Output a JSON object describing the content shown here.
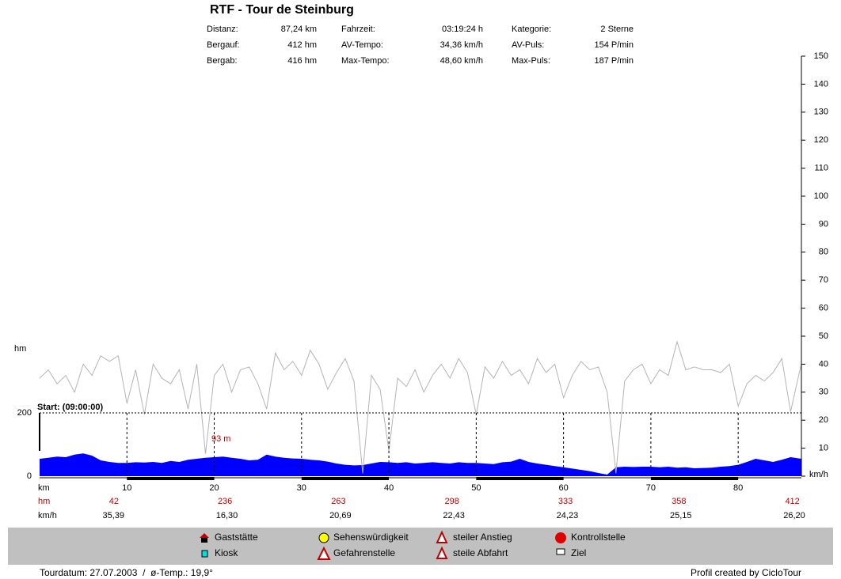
{
  "title": "RTF - Tour de Steinburg",
  "stats": [
    [
      {
        "label": "Distanz:",
        "value": "87,24 km"
      },
      {
        "label": "Fahrzeit:",
        "value": "03:19:24 h"
      },
      {
        "label": "Kategorie:",
        "value": "2 Sterne"
      }
    ],
    [
      {
        "label": "Bergauf:",
        "value": "412 hm"
      },
      {
        "label": "AV-Tempo:",
        "value": "34,36 km/h"
      },
      {
        "label": "AV-Puls:",
        "value": "154 P/min"
      }
    ],
    [
      {
        "label": "Bergab:",
        "value": "416 hm"
      },
      {
        "label": "Max-Tempo:",
        "value": "48,60 km/h"
      },
      {
        "label": "Max-Puls:",
        "value": "187 P/min"
      }
    ]
  ],
  "chart_data": {
    "type": "area",
    "x_label": "km",
    "y_label": "hm",
    "y2_label": "km/h",
    "start_label": "Start: (09:00:00)",
    "annotation": "93 m",
    "xlim": [
      0,
      87.24
    ],
    "xticks": [
      10,
      20,
      30,
      40,
      50,
      60,
      70,
      80
    ],
    "ylim": [
      0,
      200
    ],
    "yticks": [
      0,
      200
    ],
    "y2lim": [
      0,
      150
    ],
    "y2ticks": [
      0,
      10,
      20,
      30,
      40,
      50,
      60,
      70,
      80,
      90,
      100,
      110,
      120,
      130,
      140,
      150
    ],
    "x": [
      0,
      1,
      2,
      3,
      4,
      5,
      6,
      7,
      8,
      9,
      10,
      11,
      12,
      13,
      14,
      15,
      16,
      17,
      18,
      19,
      20,
      21,
      22,
      23,
      24,
      25,
      26,
      27,
      28,
      29,
      30,
      31,
      32,
      33,
      34,
      35,
      36,
      37,
      38,
      39,
      40,
      41,
      42,
      43,
      44,
      45,
      46,
      47,
      48,
      49,
      50,
      51,
      52,
      53,
      54,
      55,
      56,
      57,
      58,
      59,
      60,
      61,
      62,
      63,
      64,
      65,
      66,
      67,
      68,
      69,
      70,
      71,
      72,
      73,
      74,
      75,
      76,
      77,
      78,
      79,
      80,
      81,
      82,
      83,
      84,
      85,
      86,
      87,
      87.24
    ],
    "series": [
      {
        "color": "#0000ff",
        "values": [
          55,
          58,
          62,
          60,
          68,
          72,
          65,
          50,
          45,
          42,
          42,
          44,
          43,
          45,
          42,
          48,
          45,
          52,
          55,
          58,
          60,
          62,
          58,
          55,
          50,
          52,
          68,
          62,
          58,
          56,
          55,
          52,
          50,
          46,
          40,
          36,
          34,
          35,
          40,
          45,
          44,
          42,
          44,
          40,
          42,
          44,
          42,
          40,
          44,
          42,
          42,
          40,
          38,
          44,
          46,
          55,
          45,
          40,
          36,
          32,
          28,
          24,
          20,
          16,
          10,
          5,
          28,
          30,
          29,
          30,
          30,
          28,
          30,
          27,
          28,
          25,
          26,
          27,
          30,
          32,
          36,
          45,
          55,
          50,
          45,
          52,
          60,
          56,
          55
        ]
      },
      {
        "color": "#b4b4b4",
        "axis": "y2",
        "values": [
          35,
          38,
          33,
          36,
          30,
          40,
          36,
          43,
          41,
          43,
          26,
          38,
          22,
          40,
          35,
          33,
          38,
          24,
          40,
          8,
          36,
          40,
          30,
          38,
          39,
          33,
          24,
          44,
          38,
          41,
          36,
          45,
          40,
          31,
          37,
          42,
          34,
          1,
          36,
          31,
          9,
          35,
          32,
          38,
          30,
          36,
          40,
          35,
          42,
          37,
          22,
          39,
          35,
          41,
          36,
          38,
          33,
          42,
          37,
          40,
          28,
          36,
          41,
          38,
          39,
          30,
          1,
          34,
          38,
          40,
          33,
          38,
          36,
          48,
          38,
          39,
          38,
          38,
          37,
          40,
          25,
          33,
          36,
          34,
          37,
          42,
          23,
          37,
          40
        ]
      }
    ]
  },
  "profile_table": {
    "rows": [
      {
        "label": "hm",
        "values": [
          "42",
          "236",
          "263",
          "298",
          "333",
          "358",
          "412"
        ]
      },
      {
        "label": "km/h",
        "values": [
          "35,39",
          "16,30",
          "20,69",
          "22,43",
          "24,23",
          "25,15",
          "26,20"
        ]
      }
    ]
  },
  "legend_items": [
    "Gaststätte",
    "Sehenswürdigkeit",
    "steiler Anstieg",
    "Kontrollstelle",
    "Kiosk",
    "Gefahrenstelle",
    "steile Abfahrt",
    "Ziel"
  ],
  "footer": {
    "left": "Tourdatum: 27.07.2003  /  ø-Temp.: 19,9°",
    "right": "Profil created by CicloTour"
  }
}
